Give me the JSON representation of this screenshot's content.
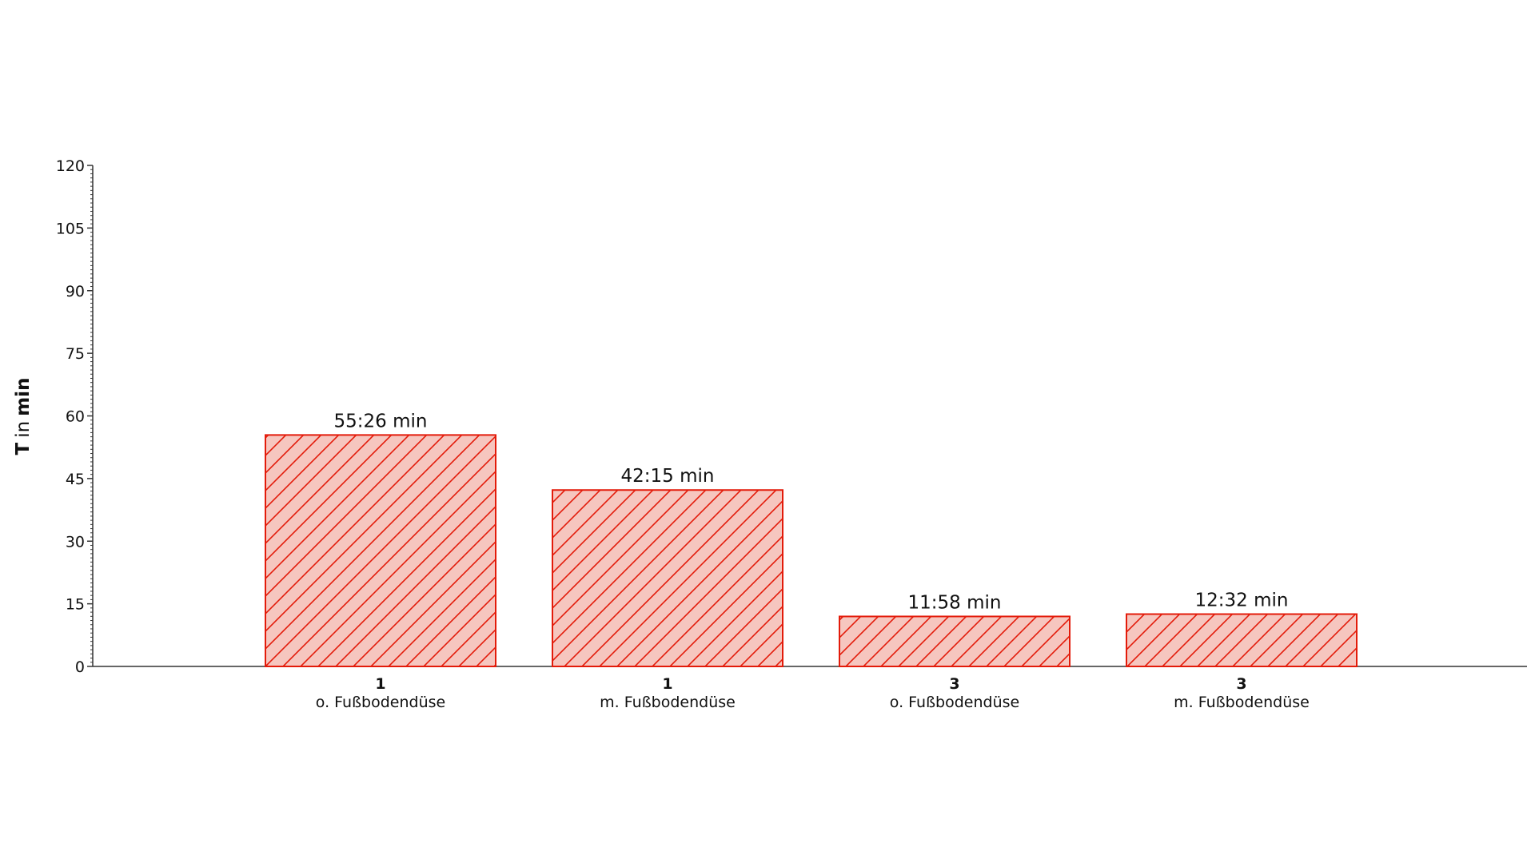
{
  "chart_data": {
    "type": "bar",
    "categories": [
      {
        "number": "1",
        "label": "o. Fußbodendüse"
      },
      {
        "number": "1",
        "label": "m. Fußbodendüse"
      },
      {
        "number": "3",
        "label": "o. Fußbodendüse"
      },
      {
        "number": "3",
        "label": "m. Fußbodendüse"
      }
    ],
    "values": [
      55.43,
      42.25,
      11.97,
      12.53
    ],
    "data_labels": [
      "55:26 min",
      "42:15 min",
      "11:58 min",
      "12:32 min"
    ],
    "ylabel": {
      "symbol": "T",
      "connector": "in",
      "unit": "min"
    },
    "ylim": [
      0,
      120
    ],
    "yticks": [
      "0",
      "15",
      "30",
      "45",
      "60",
      "75",
      "90",
      "105",
      "120"
    ],
    "grid": false,
    "colors": {
      "fill": "#f6c6bf",
      "edge": "#e31b0a",
      "hatch": "#e31b0a",
      "axis": "#333333"
    }
  }
}
